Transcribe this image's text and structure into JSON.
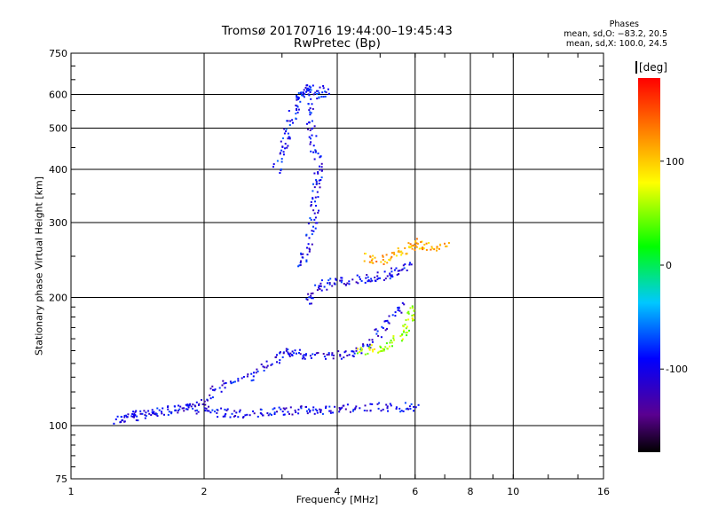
{
  "header": {
    "title": "Tromsø 20170716 19:44:00–19:45:43",
    "subtitle": "RwPretec (Bp)",
    "stats_heading": "Phases",
    "stats_line1": "mean, sd,O: −83.2, 20.5",
    "stats_line2": "mean, sd,X: 100.0, 24.5"
  },
  "chart_data": {
    "type": "scatter",
    "title": "Tromsø 20170716 19:44:00–19:45:43",
    "subtitle": "RwPretec (Bp)",
    "xlabel": "Frequency [MHz]",
    "ylabel": "Stationary phase Virtual Height [km]",
    "x_scale": "log",
    "y_scale": "log",
    "xlim": [
      1,
      16
    ],
    "ylim": [
      75,
      750
    ],
    "x_ticks": [
      1,
      2,
      4,
      6,
      8,
      10,
      16
    ],
    "y_ticks": [
      75,
      100,
      200,
      300,
      400,
      500,
      600,
      750
    ],
    "grid": true,
    "colorbar": {
      "label": "[deg]",
      "range": [
        -180,
        180
      ],
      "ticks": [
        100,
        0,
        -100
      ],
      "colormap": "rainbow (black-purple-blue-cyan-green-yellow-orange-red)"
    },
    "traces": [
      {
        "name": "",
        "phase_deg": -100,
        "points": [
          [
            1.25,
            103
          ],
          [
            1.35,
            106
          ],
          [
            1.5,
            108
          ],
          [
            1.7,
            110
          ],
          [
            1.9,
            110
          ],
          [
            2.1,
            108
          ],
          [
            2.3,
            107
          ],
          [
            2.6,
            107
          ],
          [
            2.9,
            108
          ],
          [
            3.2,
            109
          ],
          [
            3.5,
            109
          ],
          [
            3.8,
            110
          ],
          [
            4.2,
            110
          ],
          [
            4.8,
            111
          ],
          [
            5.5,
            111
          ],
          [
            6.0,
            111
          ]
        ]
      },
      {
        "name": "",
        "phase_deg": -100,
        "points": [
          [
            1.3,
            103
          ],
          [
            1.5,
            107
          ],
          [
            1.8,
            110
          ],
          [
            2.0,
            115
          ],
          [
            2.2,
            125
          ],
          [
            2.5,
            130
          ],
          [
            2.8,
            140
          ],
          [
            3.0,
            150
          ],
          [
            3.2,
            148
          ],
          [
            3.5,
            147
          ],
          [
            4.0,
            147
          ],
          [
            4.4,
            150
          ],
          [
            4.8,
            160
          ],
          [
            5.2,
            175
          ],
          [
            5.6,
            195
          ]
        ]
      },
      {
        "name": "",
        "phase_deg": -100,
        "points": [
          [
            3.4,
            195
          ],
          [
            3.6,
            210
          ],
          [
            3.8,
            218
          ],
          [
            4.2,
            220
          ],
          [
            4.6,
            222
          ],
          [
            5.0,
            225
          ],
          [
            5.4,
            230
          ],
          [
            5.8,
            240
          ]
        ]
      },
      {
        "name": "",
        "phase_deg": -95,
        "points": [
          [
            3.3,
            235
          ],
          [
            3.4,
            260
          ],
          [
            3.5,
            300
          ],
          [
            3.55,
            340
          ],
          [
            3.6,
            380
          ],
          [
            3.6,
            420
          ],
          [
            3.5,
            480
          ],
          [
            3.45,
            550
          ],
          [
            3.4,
            620
          ]
        ]
      },
      {
        "name": "",
        "phase_deg": -90,
        "points": [
          [
            2.9,
            400
          ],
          [
            3.0,
            450
          ],
          [
            3.1,
            500
          ],
          [
            3.2,
            560
          ],
          [
            3.3,
            600
          ],
          [
            3.4,
            630
          ],
          [
            3.6,
            600
          ],
          [
            3.8,
            620
          ]
        ]
      },
      {
        "name": "",
        "phase_deg": 110,
        "points": [
          [
            4.6,
            250
          ],
          [
            5.0,
            245
          ],
          [
            5.4,
            255
          ],
          [
            5.8,
            260
          ],
          [
            6.0,
            270
          ],
          [
            6.5,
            265
          ],
          [
            7.0,
            265
          ]
        ]
      },
      {
        "name": "",
        "phase_deg": 60,
        "points": [
          [
            4.4,
            150
          ],
          [
            4.8,
            152
          ],
          [
            5.2,
            155
          ],
          [
            5.6,
            165
          ],
          [
            5.8,
            180
          ],
          [
            5.9,
            190
          ]
        ]
      }
    ]
  }
}
